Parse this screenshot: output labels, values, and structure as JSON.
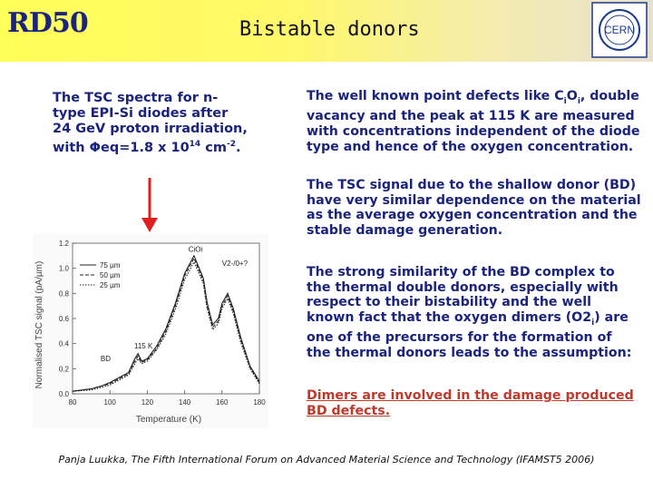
{
  "header": {
    "rd50": "RD50",
    "title": "Bistable donors",
    "logo_text": "CERN"
  },
  "left_caption": {
    "line1": "The TSC spectra for n-",
    "line2": "type EPI-Si diodes after",
    "line3": "24 GeV proton irradiation,",
    "line4_a": "with Φeq=1.8 x 10",
    "line4_sup": "14",
    "line4_b": " cm",
    "line4_sup2": "-2",
    "line4_c": "."
  },
  "paragraphs": {
    "p1": {
      "line1_a": "The well known point defects like C",
      "line1_sub1": "i",
      "line1_b": "O",
      "line1_sub2": "i",
      "line1_c": ", double",
      "line2": "vacancy and the peak at 115 K are measured",
      "line3": "with concentrations independent of the diode",
      "line4": "type and hence of the oxygen concentration."
    },
    "p2": {
      "line1": "The TSC signal due to the shallow donor (BD)",
      "line2": "have very similar dependence on the material",
      "line3": "as the average oxygen concentration and the",
      "line4": "stable damage generation."
    },
    "p3": {
      "line1": "The strong similarity of the BD complex to",
      "line2": "the thermal double donors, especially with",
      "line3": "respect to their bistability and the well",
      "line4": "known fact that the oxygen dimers (O2",
      "line4_sub": "i",
      "line4_b": ") are",
      "line5": "one of the precursors for the formation of",
      "line6": "the thermal donors leads to the assumption:"
    },
    "p4": {
      "line1": "Dimers are involved in the damage produced",
      "line2": "BD defects."
    }
  },
  "footer": "Panja Luukka, The Fifth International Forum on Advanced Material Science and Technology (IFAMST5 2006)",
  "chart_data": {
    "type": "line",
    "xlabel": "Temperature (K)",
    "ylabel": "Normalised TSC signal (pA/µm)",
    "xlim": [
      80,
      180
    ],
    "ylim": [
      0,
      1.2
    ],
    "x_ticks": [
      "80",
      "100",
      "120",
      "140",
      "160",
      "180"
    ],
    "y_ticks": [
      "0.0",
      "0.2",
      "0.4",
      "0.6",
      "0.8",
      "1.0",
      "1.2"
    ],
    "annotations": [
      "CiOi",
      "V2-/0+?",
      "BD",
      "115 K"
    ],
    "series": [
      {
        "name": "75 µm",
        "x": [
          80,
          90,
          95,
          100,
          105,
          110,
          113,
          115,
          117,
          120,
          125,
          130,
          135,
          140,
          145,
          150,
          152,
          155,
          158,
          160,
          163,
          166,
          170,
          175,
          180
        ],
        "y": [
          0.02,
          0.04,
          0.06,
          0.09,
          0.13,
          0.17,
          0.27,
          0.32,
          0.26,
          0.28,
          0.38,
          0.52,
          0.72,
          0.96,
          1.1,
          0.92,
          0.73,
          0.55,
          0.6,
          0.72,
          0.8,
          0.68,
          0.45,
          0.22,
          0.1
        ]
      },
      {
        "name": "50 µm",
        "x": [
          80,
          90,
          95,
          100,
          105,
          110,
          113,
          115,
          117,
          120,
          125,
          130,
          135,
          140,
          145,
          150,
          152,
          155,
          158,
          160,
          163,
          166,
          170,
          175,
          180
        ],
        "y": [
          0.02,
          0.04,
          0.06,
          0.08,
          0.12,
          0.16,
          0.25,
          0.3,
          0.25,
          0.27,
          0.36,
          0.5,
          0.7,
          0.94,
          1.08,
          0.9,
          0.7,
          0.53,
          0.58,
          0.7,
          0.78,
          0.66,
          0.43,
          0.21,
          0.09
        ]
      },
      {
        "name": "25 µm",
        "x": [
          80,
          90,
          95,
          100,
          105,
          110,
          113,
          115,
          117,
          120,
          125,
          130,
          135,
          140,
          145,
          150,
          152,
          155,
          158,
          160,
          163,
          166,
          170,
          175,
          180
        ],
        "y": [
          0.02,
          0.03,
          0.05,
          0.07,
          0.11,
          0.15,
          0.23,
          0.28,
          0.24,
          0.26,
          0.35,
          0.48,
          0.67,
          0.91,
          1.05,
          0.88,
          0.68,
          0.51,
          0.56,
          0.68,
          0.76,
          0.64,
          0.41,
          0.2,
          0.08
        ]
      }
    ],
    "colors": {
      "header_title": "#1a237e",
      "text": "#1a237e",
      "conclusion": "#c0392b",
      "arrow": "#e02020"
    }
  }
}
